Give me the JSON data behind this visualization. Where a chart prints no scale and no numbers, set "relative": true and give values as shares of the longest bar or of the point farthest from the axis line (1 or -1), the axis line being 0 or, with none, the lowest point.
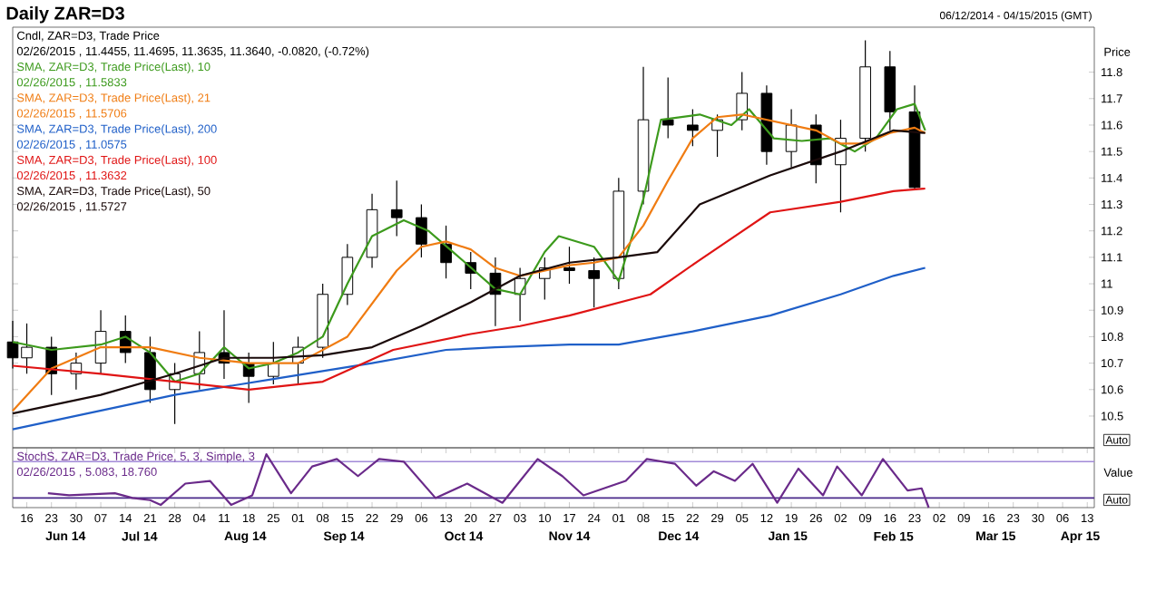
{
  "chart_data": [
    {
      "type": "candlestick",
      "title": "Daily ZAR=D3",
      "subtitle": "06/12/2014  - 04/15/2015  (GMT)",
      "ylabel": "Price",
      "xlim": [
        "2014-06-12",
        "2015-04-15"
      ],
      "ylim": [
        10.38,
        11.97
      ],
      "yticks": [
        10.5,
        10.6,
        10.7,
        10.8,
        10.9,
        11,
        11.1,
        11.2,
        11.3,
        11.4,
        11.5,
        11.6,
        11.7,
        11.8
      ],
      "tick_labels": "y",
      "legend": "top left",
      "series": [
        {
          "type": "candlestick",
          "name": "Cndl, ZAR=D3, Trade Price",
          "color": "#000000",
          "x": [
            "2014-06-12",
            "2014-06-16",
            "2014-06-23",
            "2014-06-30",
            "2014-07-07",
            "2014-07-14",
            "2014-07-21",
            "2014-07-28",
            "2014-08-04",
            "2014-08-11",
            "2014-08-18",
            "2014-08-25",
            "2014-09-01",
            "2014-09-08",
            "2014-09-15",
            "2014-09-22",
            "2014-09-29",
            "2014-10-06",
            "2014-10-13",
            "2014-10-20",
            "2014-10-27",
            "2014-11-03",
            "2014-11-10",
            "2014-11-17",
            "2014-11-24",
            "2014-12-01",
            "2014-12-08",
            "2014-12-15",
            "2014-12-22",
            "2014-12-29",
            "2015-01-05",
            "2015-01-12",
            "2015-01-19",
            "2015-01-26",
            "2015-02-02",
            "2015-02-09",
            "2015-02-16",
            "2015-02-23"
          ],
          "ohlc": [
            [
              10.78,
              10.86,
              10.68,
              10.72
            ],
            [
              10.72,
              10.85,
              10.66,
              10.76
            ],
            [
              10.76,
              10.8,
              10.58,
              10.66
            ],
            [
              10.66,
              10.74,
              10.6,
              10.7
            ],
            [
              10.7,
              10.9,
              10.66,
              10.82
            ],
            [
              10.82,
              10.88,
              10.7,
              10.74
            ],
            [
              10.74,
              10.8,
              10.55,
              10.6
            ],
            [
              10.6,
              10.7,
              10.47,
              10.66
            ],
            [
              10.66,
              10.82,
              10.6,
              10.74
            ],
            [
              10.74,
              10.9,
              10.64,
              10.7
            ],
            [
              10.7,
              10.74,
              10.55,
              10.65
            ],
            [
              10.65,
              10.78,
              10.62,
              10.7
            ],
            [
              10.7,
              10.8,
              10.62,
              10.76
            ],
            [
              10.76,
              11.0,
              10.72,
              10.96
            ],
            [
              10.96,
              11.15,
              10.92,
              11.1
            ],
            [
              11.1,
              11.34,
              11.06,
              11.28
            ],
            [
              11.28,
              11.39,
              11.18,
              11.25
            ],
            [
              11.25,
              11.3,
              11.1,
              11.15
            ],
            [
              11.15,
              11.22,
              11.02,
              11.08
            ],
            [
              11.08,
              11.12,
              10.98,
              11.04
            ],
            [
              11.04,
              11.1,
              10.84,
              10.96
            ],
            [
              10.96,
              11.06,
              10.86,
              11.02
            ],
            [
              11.02,
              11.1,
              10.94,
              11.06
            ],
            [
              11.06,
              11.14,
              11.0,
              11.05
            ],
            [
              11.05,
              11.1,
              10.91,
              11.02
            ],
            [
              11.02,
              11.4,
              10.98,
              11.35
            ],
            [
              11.35,
              11.82,
              11.3,
              11.62
            ],
            [
              11.62,
              11.78,
              11.55,
              11.6
            ],
            [
              11.6,
              11.66,
              11.52,
              11.58
            ],
            [
              11.58,
              11.64,
              11.48,
              11.62
            ],
            [
              11.62,
              11.8,
              11.58,
              11.72
            ],
            [
              11.72,
              11.75,
              11.45,
              11.5
            ],
            [
              11.5,
              11.66,
              11.44,
              11.6
            ],
            [
              11.6,
              11.64,
              11.38,
              11.45
            ],
            [
              11.45,
              11.62,
              11.27,
              11.55
            ],
            [
              11.55,
              11.92,
              11.5,
              11.82
            ],
            [
              11.82,
              11.88,
              11.58,
              11.65
            ],
            [
              11.65,
              11.75,
              11.36,
              11.364
            ]
          ]
        },
        {
          "type": "line",
          "name": "SMA, ZAR=D3, Trade Price(Last),  10",
          "color": "#3c9a1c",
          "x": [
            "2014-06-12",
            "2014-06-23",
            "2014-07-07",
            "2014-07-14",
            "2014-07-21",
            "2014-07-28",
            "2014-08-04",
            "2014-08-11",
            "2014-08-18",
            "2014-08-25",
            "2014-09-01",
            "2014-09-08",
            "2014-09-15",
            "2014-09-22",
            "2014-10-01",
            "2014-10-08",
            "2014-10-15",
            "2014-10-27",
            "2014-11-03",
            "2014-11-10",
            "2014-11-14",
            "2014-11-24",
            "2014-12-01",
            "2014-12-08",
            "2014-12-13",
            "2014-12-24",
            "2015-01-02",
            "2015-01-07",
            "2015-01-14",
            "2015-01-22",
            "2015-01-30",
            "2015-02-06",
            "2015-02-12",
            "2015-02-18",
            "2015-02-23",
            "2015-02-26"
          ],
          "values": [
            10.78,
            10.75,
            10.77,
            10.8,
            10.74,
            10.63,
            10.66,
            10.76,
            10.68,
            10.7,
            10.74,
            10.8,
            11.0,
            11.18,
            11.24,
            11.2,
            11.12,
            10.98,
            10.96,
            11.12,
            11.18,
            11.14,
            11.01,
            11.32,
            11.62,
            11.64,
            11.6,
            11.66,
            11.55,
            11.54,
            11.55,
            11.5,
            11.55,
            11.66,
            11.68,
            11.58
          ]
        },
        {
          "type": "line",
          "name": "SMA, ZAR=D3, Trade Price(Last),  21",
          "color": "#f07c12",
          "x": [
            "2014-06-12",
            "2014-06-23",
            "2014-07-07",
            "2014-07-21",
            "2014-08-04",
            "2014-08-18",
            "2014-09-01",
            "2014-09-15",
            "2014-09-29",
            "2014-10-06",
            "2014-10-13",
            "2014-10-20",
            "2014-10-27",
            "2014-11-03",
            "2014-11-10",
            "2014-11-17",
            "2014-11-24",
            "2014-12-01",
            "2014-12-08",
            "2014-12-15",
            "2014-12-22",
            "2014-12-29",
            "2015-01-05",
            "2015-01-12",
            "2015-01-19",
            "2015-01-26",
            "2015-02-02",
            "2015-02-09",
            "2015-02-16",
            "2015-02-23",
            "2015-02-26"
          ],
          "values": [
            10.52,
            10.68,
            10.76,
            10.76,
            10.72,
            10.7,
            10.7,
            10.8,
            11.05,
            11.14,
            11.16,
            11.13,
            11.06,
            11.03,
            11.05,
            11.07,
            11.08,
            11.1,
            11.22,
            11.39,
            11.55,
            11.63,
            11.64,
            11.62,
            11.6,
            11.58,
            11.53,
            11.53,
            11.57,
            11.59,
            11.57
          ]
        },
        {
          "type": "line",
          "name": "SMA, ZAR=D3, Trade Price(Last),  200",
          "color": "#1f5fc8",
          "x": [
            "2014-06-12",
            "2014-07-28",
            "2014-08-25",
            "2014-09-22",
            "2014-10-13",
            "2014-10-27",
            "2014-11-17",
            "2014-12-01",
            "2014-12-22",
            "2015-01-13",
            "2015-02-02",
            "2015-02-17",
            "2015-02-26"
          ],
          "values": [
            10.45,
            10.58,
            10.64,
            10.7,
            10.75,
            10.76,
            10.77,
            10.77,
            10.82,
            10.88,
            10.96,
            11.03,
            11.06
          ]
        },
        {
          "type": "line",
          "name": "SMA, ZAR=D3, Trade Price(Last),  100",
          "color": "#e01414",
          "x": [
            "2014-06-12",
            "2014-07-07",
            "2014-08-04",
            "2014-08-18",
            "2014-09-08",
            "2014-09-28",
            "2014-10-20",
            "2014-11-03",
            "2014-11-17",
            "2014-12-10",
            "2014-12-24",
            "2015-01-13",
            "2015-02-02",
            "2015-02-17",
            "2015-02-26"
          ],
          "values": [
            10.69,
            10.66,
            10.62,
            10.6,
            10.63,
            10.75,
            10.81,
            10.84,
            10.88,
            10.96,
            11.09,
            11.27,
            11.31,
            11.35,
            11.36
          ]
        },
        {
          "type": "line",
          "name": "SMA, ZAR=D3, Trade Price(Last),  50",
          "color": "#1a0a0a",
          "x": [
            "2014-06-12",
            "2014-07-07",
            "2014-07-28",
            "2014-08-11",
            "2014-08-25",
            "2014-09-08",
            "2014-09-22",
            "2014-10-06",
            "2014-10-20",
            "2014-11-03",
            "2014-11-17",
            "2014-12-01",
            "2014-12-12",
            "2014-12-24",
            "2015-01-13",
            "2015-02-02",
            "2015-02-17",
            "2015-02-26"
          ],
          "values": [
            10.51,
            10.58,
            10.66,
            10.72,
            10.72,
            10.73,
            10.76,
            10.84,
            10.93,
            11.03,
            11.08,
            11.1,
            11.12,
            11.3,
            11.41,
            11.5,
            11.58,
            11.57
          ]
        }
      ],
      "annotations": [
        "02/26/2015 , 11.4455, 11.4695, 11.3635, 11.3640, -0.0820, (-0.72%)",
        "02/26/2015 , 11.5833",
        "02/26/2015 , 11.5706",
        "02/26/2015 , 11.0575",
        "02/26/2015 , 11.3632",
        "02/26/2015 , 11.5727",
        "Auto"
      ]
    },
    {
      "type": "line",
      "relative": true,
      "ylabel": "Value",
      "xlim": [
        "2014-06-12",
        "2015-04-15"
      ],
      "x2lim": [
        "2014-06-12",
        "2015-04-15"
      ],
      "tick_labels": "x",
      "legend": "top left",
      "xticks": [
        {
          "value": "2014-06-16",
          "label": "16"
        },
        {
          "value": "2014-06-23",
          "label": "23"
        },
        {
          "value": "2014-06-30",
          "label": "30"
        },
        {
          "value": "2014-07-07",
          "label": "07"
        },
        {
          "value": "2014-07-14",
          "label": "14"
        },
        {
          "value": "2014-07-21",
          "label": "21"
        },
        {
          "value": "2014-07-28",
          "label": "28"
        },
        {
          "value": "2014-08-04",
          "label": "04"
        },
        {
          "value": "2014-08-11",
          "label": "11"
        },
        {
          "value": "2014-08-18",
          "label": "18"
        },
        {
          "value": "2014-08-25",
          "label": "25"
        },
        {
          "value": "2014-09-01",
          "label": "01"
        },
        {
          "value": "2014-09-08",
          "label": "08"
        },
        {
          "value": "2014-09-15",
          "label": "15"
        },
        {
          "value": "2014-09-22",
          "label": "22"
        },
        {
          "value": "2014-09-29",
          "label": "29"
        },
        {
          "value": "2014-10-06",
          "label": "06"
        },
        {
          "value": "2014-10-13",
          "label": "13"
        },
        {
          "value": "2014-10-20",
          "label": "20"
        },
        {
          "value": "2014-10-27",
          "label": "27"
        },
        {
          "value": "2014-11-03",
          "label": "03"
        },
        {
          "value": "2014-11-10",
          "label": "10"
        },
        {
          "value": "2014-11-17",
          "label": "17"
        },
        {
          "value": "2014-11-24",
          "label": "24"
        },
        {
          "value": "2014-12-01",
          "label": "01"
        },
        {
          "value": "2014-12-08",
          "label": "08"
        },
        {
          "value": "2014-12-15",
          "label": "15"
        },
        {
          "value": "2014-12-22",
          "label": "22"
        },
        {
          "value": "2014-12-29",
          "label": "29"
        },
        {
          "value": "2015-01-05",
          "label": "05"
        },
        {
          "value": "2015-01-12",
          "label": "12"
        },
        {
          "value": "2015-01-19",
          "label": "19"
        },
        {
          "value": "2015-01-26",
          "label": "26"
        },
        {
          "value": "2015-02-02",
          "label": "02"
        },
        {
          "value": "2015-02-09",
          "label": "09"
        },
        {
          "value": "2015-02-16",
          "label": "16"
        },
        {
          "value": "2015-02-23",
          "label": "23"
        },
        {
          "value": "2015-03-02",
          "label": "02"
        },
        {
          "value": "2015-03-09",
          "label": "09"
        },
        {
          "value": "2015-03-16",
          "label": "16"
        },
        {
          "value": "2015-03-23",
          "label": "23"
        },
        {
          "value": "2015-03-30",
          "label": "30"
        },
        {
          "value": "2015-04-06",
          "label": "06"
        },
        {
          "value": "2015-04-13",
          "label": "13"
        }
      ],
      "x2ticks": [
        {
          "value": "2014-06-27",
          "label": "Jun 14"
        },
        {
          "value": "2014-07-18",
          "label": "Jul 14"
        },
        {
          "value": "2014-08-17",
          "label": "Aug 14"
        },
        {
          "value": "2014-09-14",
          "label": "Sep 14"
        },
        {
          "value": "2014-10-18",
          "label": "Oct 14"
        },
        {
          "value": "2014-11-17",
          "label": "Nov 14"
        },
        {
          "value": "2014-12-18",
          "label": "Dec 14"
        },
        {
          "value": "2015-01-18",
          "label": "Jan 15"
        },
        {
          "value": "2015-02-17",
          "label": "Feb 15"
        },
        {
          "value": "2015-03-18",
          "label": "Mar 15"
        },
        {
          "value": "2015-04-11",
          "label": "Apr 15"
        }
      ],
      "series": [
        {
          "name": "StochS, ZAR=D3, Trade Price,  5,  3,  Simple,  3",
          "color": "#6a2a8a",
          "x": [
            "2014-06-22",
            "2014-06-28",
            "2014-07-11",
            "2014-07-16",
            "2014-07-21",
            "2014-07-24",
            "2014-07-31",
            "2014-08-07",
            "2014-08-13",
            "2014-08-19",
            "2014-08-23",
            "2014-08-30",
            "2014-09-05",
            "2014-09-12",
            "2014-09-18",
            "2014-09-24",
            "2014-10-01",
            "2014-10-10",
            "2014-10-19",
            "2014-10-29",
            "2014-11-08",
            "2014-11-15",
            "2014-11-21",
            "2014-12-03",
            "2014-12-09",
            "2014-12-17",
            "2014-12-23",
            "2014-12-28",
            "2015-01-03",
            "2015-01-08",
            "2015-01-15",
            "2015-01-21",
            "2015-01-28",
            "2015-02-01",
            "2015-02-08",
            "2015-02-14",
            "2015-02-21",
            "2015-02-25",
            "2015-02-27"
          ],
          "values": [
            0.27,
            0.23,
            0.27,
            0.18,
            0.14,
            0.05,
            0.45,
            0.5,
            0.05,
            0.23,
            1.0,
            0.27,
            0.77,
            0.91,
            0.59,
            0.91,
            0.86,
            0.18,
            0.45,
            0.09,
            0.91,
            0.59,
            0.23,
            0.5,
            0.91,
            0.82,
            0.41,
            0.68,
            0.5,
            0.82,
            0.09,
            0.73,
            0.23,
            0.77,
            0.23,
            0.91,
            0.32,
            0.36,
            0.0
          ]
        }
      ],
      "ref_lines": [
        {
          "axis": "y",
          "value": 0.86,
          "color": "#a28ad8"
        },
        {
          "axis": "y",
          "value": 0.18,
          "color": "#4a2a8a"
        }
      ],
      "annotations": [
        "02/26/2015 , 5.083, 18.760",
        "Auto"
      ]
    }
  ]
}
